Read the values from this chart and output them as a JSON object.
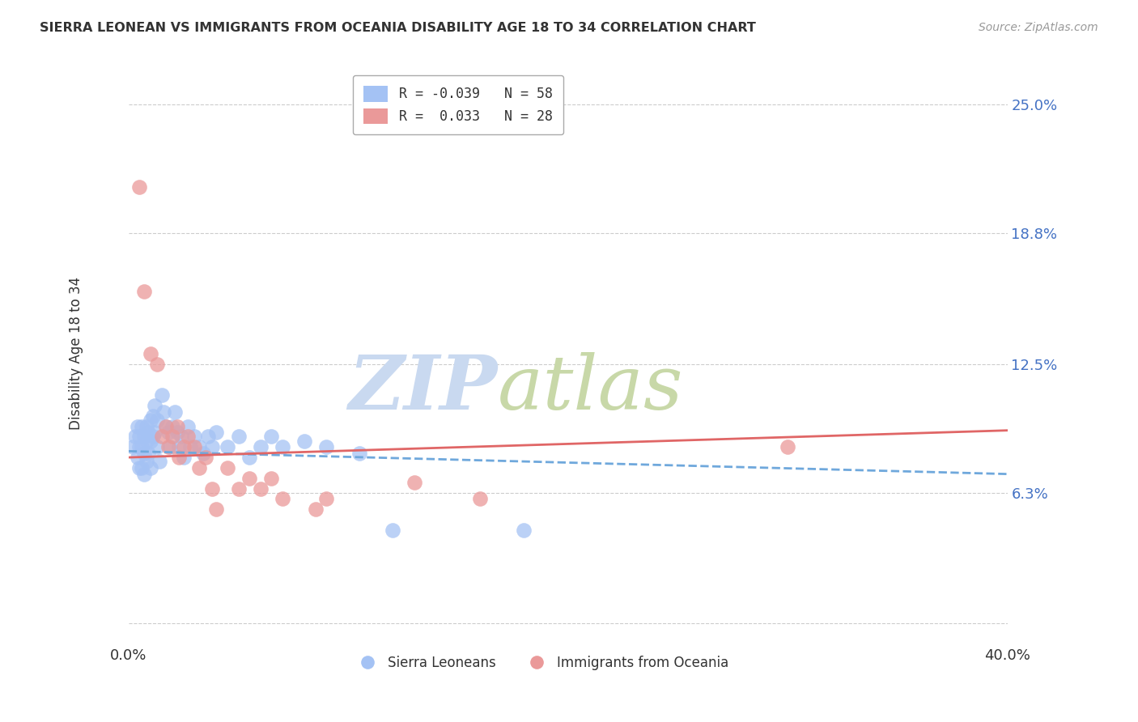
{
  "title": "SIERRA LEONEAN VS IMMIGRANTS FROM OCEANIA DISABILITY AGE 18 TO 34 CORRELATION CHART",
  "source": "Source: ZipAtlas.com",
  "ylabel": "Disability Age 18 to 34",
  "xlim": [
    0.0,
    0.4
  ],
  "ylim": [
    -0.01,
    0.27
  ],
  "ytick_positions": [
    0.0,
    0.063,
    0.125,
    0.188,
    0.25
  ],
  "ytick_labels": [
    "",
    "6.3%",
    "12.5%",
    "18.8%",
    "25.0%"
  ],
  "xtick_positions": [
    0.0,
    0.1,
    0.2,
    0.3,
    0.4
  ],
  "xtick_labels": [
    "0.0%",
    "",
    "",
    "",
    "40.0%"
  ],
  "sierra_leonean": {
    "color": "#a4c2f4",
    "line_color": "#6fa8dc",
    "line_style": "--",
    "line_y_start": 0.083,
    "line_y_end": 0.072,
    "x": [
      0.002,
      0.003,
      0.004,
      0.004,
      0.005,
      0.005,
      0.005,
      0.006,
      0.006,
      0.006,
      0.007,
      0.007,
      0.007,
      0.008,
      0.008,
      0.008,
      0.009,
      0.009,
      0.01,
      0.01,
      0.01,
      0.011,
      0.011,
      0.012,
      0.012,
      0.013,
      0.013,
      0.014,
      0.015,
      0.016,
      0.017,
      0.018,
      0.019,
      0.02,
      0.021,
      0.022,
      0.023,
      0.024,
      0.025,
      0.027,
      0.028,
      0.03,
      0.032,
      0.034,
      0.036,
      0.038,
      0.04,
      0.045,
      0.05,
      0.055,
      0.06,
      0.065,
      0.07,
      0.08,
      0.09,
      0.105,
      0.12,
      0.18
    ],
    "y": [
      0.085,
      0.09,
      0.095,
      0.08,
      0.09,
      0.085,
      0.075,
      0.095,
      0.085,
      0.075,
      0.09,
      0.082,
      0.072,
      0.095,
      0.088,
      0.078,
      0.092,
      0.082,
      0.098,
      0.088,
      0.075,
      0.1,
      0.09,
      0.105,
      0.092,
      0.098,
      0.085,
      0.078,
      0.11,
      0.102,
      0.095,
      0.092,
      0.085,
      0.095,
      0.102,
      0.092,
      0.085,
      0.09,
      0.08,
      0.095,
      0.085,
      0.09,
      0.085,
      0.082,
      0.09,
      0.085,
      0.092,
      0.085,
      0.09,
      0.08,
      0.085,
      0.09,
      0.085,
      0.088,
      0.085,
      0.082,
      0.045,
      0.045
    ]
  },
  "oceania": {
    "color": "#ea9999",
    "line_color": "#e06666",
    "line_style": "-",
    "line_y_start": 0.08,
    "line_y_end": 0.093,
    "x": [
      0.005,
      0.007,
      0.01,
      0.013,
      0.015,
      0.017,
      0.018,
      0.02,
      0.022,
      0.023,
      0.025,
      0.027,
      0.03,
      0.032,
      0.035,
      0.038,
      0.04,
      0.045,
      0.05,
      0.055,
      0.06,
      0.065,
      0.07,
      0.085,
      0.09,
      0.13,
      0.16,
      0.3
    ],
    "y": [
      0.21,
      0.16,
      0.13,
      0.125,
      0.09,
      0.095,
      0.085,
      0.09,
      0.095,
      0.08,
      0.085,
      0.09,
      0.085,
      0.075,
      0.08,
      0.065,
      0.055,
      0.075,
      0.065,
      0.07,
      0.065,
      0.07,
      0.06,
      0.055,
      0.06,
      0.068,
      0.06,
      0.085
    ]
  },
  "watermark_line1": "ZIP",
  "watermark_line2": "atlas",
  "watermark_color": "#c9d9f0",
  "bg_color": "#ffffff",
  "grid_color": "#cccccc",
  "ytick_color": "#4472c4",
  "xtick_color": "#333333",
  "title_color": "#333333",
  "source_color": "#999999"
}
